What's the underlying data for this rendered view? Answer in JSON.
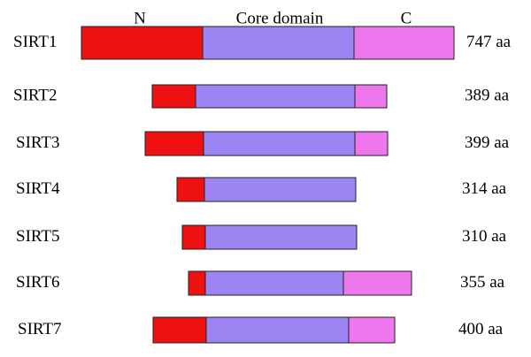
{
  "header": {
    "n_label": "N",
    "core_label": "Core domain",
    "c_label": "C"
  },
  "proteins": [
    {
      "name": "SIRT1",
      "length": "747 aa"
    },
    {
      "name": "SIRT2",
      "length": "389 aa"
    },
    {
      "name": "SIRT3",
      "length": "399 aa"
    },
    {
      "name": "SIRT4",
      "length": "314 aa"
    },
    {
      "name": "SIRT5",
      "length": "310 aa"
    },
    {
      "name": "SIRT6",
      "length": "355 aa"
    },
    {
      "name": "SIRT7",
      "length": "400 aa"
    }
  ]
}
